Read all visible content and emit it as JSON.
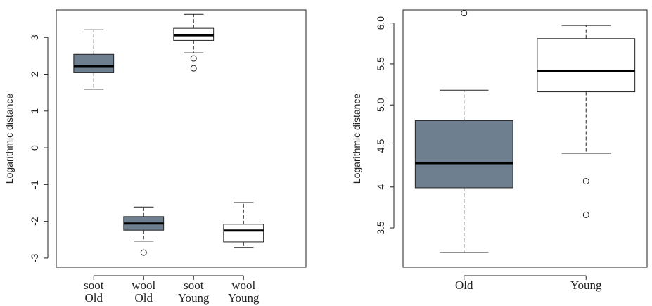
{
  "chart_data": [
    {
      "type": "box",
      "ylabel": "Logarithmic distance",
      "categories": [
        [
          "soot",
          "Old"
        ],
        [
          "wool",
          "Old"
        ],
        [
          "soot",
          "Young"
        ],
        [
          "wool",
          "Young"
        ]
      ],
      "ylim": [
        -3.25,
        3.75
      ],
      "yticks": [
        -3,
        -2,
        -1,
        0,
        1,
        2,
        3
      ],
      "boxes": [
        {
          "whislo": 1.59,
          "q1": 2.04,
          "med": 2.22,
          "q3": 2.54,
          "whishi": 3.21,
          "fliers": [],
          "color": "#6e7f8f"
        },
        {
          "whislo": -2.54,
          "q1": -2.24,
          "med": -2.06,
          "q3": -1.87,
          "whishi": -1.61,
          "fliers": [
            -2.85
          ],
          "color": "#6e7f8f"
        },
        {
          "whislo": 2.58,
          "q1": 2.92,
          "med": 3.06,
          "q3": 3.25,
          "whishi": 3.63,
          "fliers": [
            2.43,
            2.16
          ],
          "color": "#ffffff"
        },
        {
          "whislo": -2.71,
          "q1": -2.56,
          "med": -2.25,
          "q3": -2.08,
          "whishi": -1.49,
          "fliers": [],
          "color": "#ffffff"
        }
      ]
    },
    {
      "type": "box",
      "ylabel": "Logarithmic distance",
      "categories": [
        [
          "Old"
        ],
        [
          "Young"
        ]
      ],
      "ylim": [
        3.02,
        6.16
      ],
      "yticks": [
        3.5,
        4.0,
        {
          "value": 4.5,
          "label": "4.5"
        },
        {
          "value": 5.0,
          "label": "5.0"
        },
        5.5,
        {
          "value": 6.0,
          "label": "6.0"
        }
      ],
      "boxes": [
        {
          "whislo": 3.2,
          "q1": 3.99,
          "med": 4.29,
          "q3": 4.81,
          "whishi": 5.18,
          "fliers": [
            6.12
          ],
          "color": "#6e7f8f"
        },
        {
          "whislo": 4.41,
          "q1": 5.16,
          "med": 5.41,
          "q3": 5.81,
          "whishi": 5.97,
          "fliers": [
            4.07,
            3.66
          ],
          "color": "#ffffff"
        }
      ]
    }
  ]
}
